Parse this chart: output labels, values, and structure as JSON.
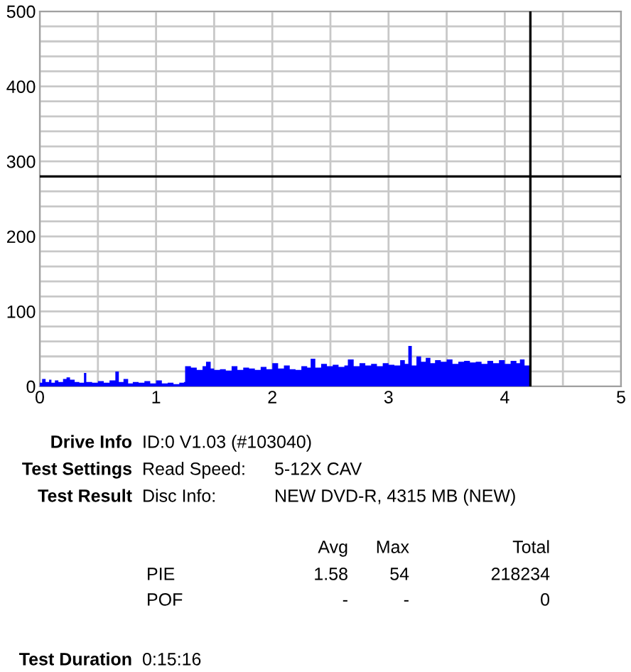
{
  "chart_data": {
    "type": "area",
    "series": [
      {
        "color": "#0000ff",
        "x": [
          0,
          0.02,
          0.05,
          0.08,
          0.1,
          0.13,
          0.16,
          0.2,
          0.23,
          0.26,
          0.3,
          0.34,
          0.38,
          0.4,
          0.45,
          0.5,
          0.55,
          0.6,
          0.65,
          0.68,
          0.72,
          0.76,
          0.8,
          0.85,
          0.9,
          0.95,
          1.0,
          1.05,
          1.1,
          1.15,
          1.2,
          1.24,
          1.25,
          1.3,
          1.35,
          1.4,
          1.43,
          1.47,
          1.5,
          1.55,
          1.6,
          1.65,
          1.7,
          1.75,
          1.8,
          1.85,
          1.9,
          1.95,
          2.0,
          2.05,
          2.1,
          2.15,
          2.2,
          2.25,
          2.3,
          2.33,
          2.37,
          2.42,
          2.47,
          2.52,
          2.57,
          2.62,
          2.65,
          2.7,
          2.75,
          2.8,
          2.85,
          2.9,
          2.95,
          3.0,
          3.05,
          3.1,
          3.14,
          3.17,
          3.2,
          3.24,
          3.28,
          3.32,
          3.36,
          3.4,
          3.45,
          3.5,
          3.55,
          3.6,
          3.65,
          3.7,
          3.75,
          3.8,
          3.85,
          3.9,
          3.95,
          4.0,
          4.05,
          4.1,
          4.13,
          4.17,
          4.22
        ],
        "values": [
          5,
          10,
          6,
          9,
          5,
          8,
          6,
          10,
          12,
          9,
          6,
          5,
          18,
          6,
          5,
          7,
          5,
          8,
          20,
          6,
          10,
          4,
          6,
          5,
          7,
          4,
          8,
          4,
          5,
          3,
          5,
          6,
          27,
          25,
          22,
          27,
          33,
          24,
          22,
          23,
          21,
          27,
          22,
          25,
          24,
          22,
          26,
          23,
          31,
          24,
          28,
          23,
          22,
          27,
          25,
          37,
          25,
          30,
          27,
          29,
          26,
          28,
          36,
          27,
          31,
          28,
          30,
          27,
          31,
          29,
          28,
          35,
          30,
          54,
          28,
          40,
          33,
          38,
          31,
          35,
          33,
          36,
          30,
          33,
          34,
          32,
          33,
          30,
          34,
          31,
          35,
          30,
          34,
          31,
          36,
          28,
          27
        ]
      }
    ],
    "xlim": [
      0,
      5
    ],
    "xticks": [
      0,
      {
        "value": 0.5,
        "label": null
      },
      1,
      {
        "value": 1.5,
        "label": null
      },
      2,
      {
        "value": 2.5,
        "label": null
      },
      3,
      {
        "value": 3.5,
        "label": null
      },
      4,
      {
        "value": 4.5,
        "label": null
      },
      5
    ],
    "ylim": [
      0,
      500
    ],
    "yticks": [
      0,
      {
        "value": 20,
        "label": null
      },
      {
        "value": 40,
        "label": null
      },
      {
        "value": 60,
        "label": null
      },
      {
        "value": 80,
        "label": null
      },
      100,
      {
        "value": 120,
        "label": null
      },
      {
        "value": 140,
        "label": null
      },
      {
        "value": 160,
        "label": null
      },
      {
        "value": 180,
        "label": null
      },
      200,
      {
        "value": 220,
        "label": null
      },
      {
        "value": 240,
        "label": null
      },
      {
        "value": 260,
        "label": null
      },
      {
        "value": 280,
        "label": null
      },
      300,
      {
        "value": 320,
        "label": null
      },
      {
        "value": 340,
        "label": null
      },
      {
        "value": 360,
        "label": null
      },
      {
        "value": 380,
        "label": null
      },
      400,
      {
        "value": 420,
        "label": null
      },
      {
        "value": 440,
        "label": null
      },
      {
        "value": 460,
        "label": null
      },
      {
        "value": 480,
        "label": null
      },
      500
    ],
    "grid": true,
    "ref_lines": [
      {
        "axis": "y",
        "value": 280,
        "color": "#000000"
      },
      {
        "axis": "x",
        "value": 4.22,
        "color": "#000000"
      }
    ],
    "annotations": [
      "Drive Info",
      "ID:0 V1.03 (#103040)",
      "Test Settings",
      "Read Speed:",
      "5-12X CAV",
      "Test Result",
      "Disc Info:",
      "NEW DVD-R, 4315 MB (NEW)",
      "Avg",
      "Max",
      "Total",
      "PIE",
      "1.58",
      "54",
      "218234",
      "POF",
      "-",
      "-",
      "0",
      "Test Duration",
      "0:15:16"
    ]
  }
}
